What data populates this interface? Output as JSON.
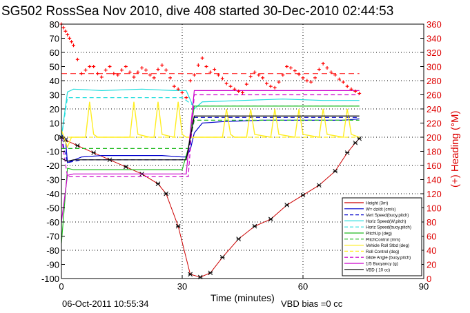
{
  "chart_data": {
    "type": "line",
    "title": "SG502 RossSea Nov 2010, dive 408 started 30-Dec-2010 02:44:53",
    "xlabel": "Time (minutes)",
    "ylabel_right": "(+) Heading (°M)",
    "xlim": [
      0,
      90
    ],
    "ylim_left": [
      -100,
      80
    ],
    "ylim_right": [
      0,
      360
    ],
    "x_ticks": [
      0,
      30,
      60,
      90
    ],
    "y_ticks_left": [
      80,
      70,
      60,
      50,
      40,
      30,
      20,
      10,
      0,
      -10,
      -20,
      -30,
      -40,
      -50,
      -60,
      -70,
      -80,
      -90,
      -100
    ],
    "y_ticks_right": [
      360,
      340,
      320,
      300,
      280,
      260,
      240,
      220,
      200,
      180,
      160,
      140,
      120,
      100,
      80,
      60,
      40,
      20,
      0
    ],
    "grid": true,
    "legend_position": "lower-right",
    "footer_left": "06-Oct-2011 10:55:34",
    "footer_right": "VBD bias =0 cc",
    "colors": {
      "heading": "#ff0000",
      "axis_right": "#dd0000",
      "height": "#cc0000",
      "w": "#0000cc",
      "horz_speed": "#22dddd",
      "pitch": "#22bb22",
      "roll": "#ffee22",
      "buoyancy": "#cc00cc",
      "vbd": "#000000"
    },
    "series": [
      {
        "name": "Height (3m)",
        "style": "red-solid-markers",
        "x": [
          0,
          1,
          4,
          8,
          12,
          16,
          20,
          24,
          26,
          29,
          32,
          34.5,
          37,
          40,
          44,
          48,
          52,
          56,
          60,
          64,
          68,
          71,
          73,
          74
        ],
        "y": [
          0,
          -2,
          -6,
          -11,
          -16,
          -21,
          -26,
          -33,
          -40,
          -63,
          -97,
          -99,
          -96,
          -85,
          -72,
          -63,
          -58,
          -48,
          -41,
          -34,
          -24,
          -11,
          -4,
          -1
        ]
      },
      {
        "name": "W= dz/dt (cm/s)",
        "style": "blue-solid",
        "x": [
          0,
          1,
          1.5,
          5,
          10,
          15,
          20,
          25,
          30,
          31,
          32,
          33,
          35,
          40,
          50,
          60,
          70,
          74
        ],
        "y": [
          2,
          -1,
          -18,
          -14,
          -13,
          -13,
          -13,
          -13,
          -14,
          -14,
          -9,
          3,
          10,
          11,
          12,
          12,
          12,
          13
        ]
      },
      {
        "name": "Vert Speed(buoy,pitch)",
        "style": "blue-dashed",
        "x": [
          0,
          1.5,
          5,
          30,
          31.5,
          33,
          74
        ],
        "y": [
          0,
          -18,
          -16,
          -16,
          -12,
          14,
          14
        ]
      },
      {
        "name": "Horiz Speed(W,pitch)",
        "style": "cyan-solid",
        "x": [
          0,
          1.5,
          3,
          10,
          20,
          28,
          31,
          33,
          35,
          45,
          55,
          65,
          74
        ],
        "y": [
          0,
          32,
          34,
          33,
          34,
          33,
          33,
          20,
          25,
          26,
          27,
          26,
          26
        ]
      },
      {
        "name": "Horiz Speed(buoy,pitch)",
        "style": "cyan-dashed",
        "x": [
          0,
          1.5,
          3,
          30,
          31.5,
          33,
          74
        ],
        "y": [
          0,
          28,
          28,
          28,
          25,
          22,
          22
        ]
      },
      {
        "name": "PitchUp (deg)",
        "style": "green-solid",
        "x": [
          0,
          1.5,
          3,
          10,
          20,
          30,
          31.5,
          33,
          74
        ],
        "y": [
          -75,
          -22,
          -23,
          -23,
          -23,
          -23,
          -8,
          22,
          22
        ]
      },
      {
        "name": "PitchControl (mm)",
        "style": "green-dashed",
        "x": [
          0,
          1.5,
          3,
          30,
          31.5,
          33,
          74
        ],
        "y": [
          -8,
          -8,
          -8,
          -8,
          -8,
          12,
          12
        ]
      },
      {
        "name": "Vehicle Roll Stbd (deg)",
        "style": "yellow-solid",
        "x": [
          0,
          1.5,
          2.5,
          3.5,
          5,
          6,
          7,
          8,
          9,
          10,
          15,
          17,
          18,
          19,
          22,
          23,
          24,
          25,
          28,
          29,
          30,
          31,
          33,
          40,
          41,
          42,
          43,
          46,
          47,
          48,
          52,
          53,
          54,
          58,
          59,
          60,
          64,
          65,
          66,
          70,
          71,
          72,
          74
        ],
        "y": [
          5,
          -7,
          0,
          0,
          0,
          0,
          25,
          2,
          0,
          0,
          0,
          0,
          25,
          2,
          0,
          0,
          25,
          2,
          0,
          25,
          2,
          0,
          0,
          0,
          20,
          2,
          0,
          0,
          20,
          2,
          0,
          20,
          2,
          0,
          20,
          2,
          0,
          20,
          2,
          0,
          20,
          2,
          0
        ]
      },
      {
        "name": "Roll Control (deg)",
        "style": "yellow-dashed",
        "x": [
          0,
          74
        ],
        "y": [
          0,
          0
        ]
      },
      {
        "name": "Glide Angle (buoy,pitch)",
        "style": "magenta-dashed",
        "x": [
          0,
          1.5,
          3,
          30,
          31.5,
          33,
          74
        ],
        "y": [
          0,
          -28,
          -28,
          -28,
          -28,
          30,
          30
        ]
      },
      {
        "name": "1/5 Buoyancy (g)",
        "style": "magenta-solid",
        "x": [
          0,
          1.5,
          3,
          31,
          33,
          74
        ],
        "y": [
          -60,
          -27,
          -26,
          -26,
          33,
          33
        ]
      },
      {
        "name": "VBD ( 10 cc)",
        "style": "black-solid",
        "x": [
          0,
          1.5,
          3,
          31,
          33,
          74
        ],
        "y": [
          -15,
          -17,
          -16,
          -16,
          15,
          15
        ]
      }
    ],
    "heading": {
      "axis": "right",
      "style": "red-cross-markers",
      "x": [
        0,
        0.5,
        1,
        1.5,
        2,
        2.5,
        3,
        4,
        5,
        6,
        7,
        8,
        9,
        10,
        11,
        12,
        13,
        14,
        15,
        16,
        17,
        18,
        19,
        20,
        21,
        22,
        23,
        24,
        25,
        26,
        27,
        28,
        29,
        30,
        31,
        32,
        33,
        34,
        35,
        36,
        37,
        38,
        39,
        40,
        41,
        42,
        43,
        44,
        45,
        46,
        47,
        48,
        49,
        50,
        51,
        52,
        53,
        54,
        55,
        56,
        57,
        58,
        59,
        60,
        61,
        62,
        63,
        64,
        65,
        66,
        67,
        68,
        69,
        70,
        71,
        72,
        73,
        74
      ],
      "y": [
        360,
        355,
        350,
        345,
        340,
        335,
        330,
        310,
        290,
        295,
        300,
        300,
        290,
        285,
        295,
        300,
        290,
        288,
        295,
        300,
        292,
        285,
        292,
        298,
        295,
        288,
        284,
        296,
        302,
        295,
        284,
        272,
        268,
        263,
        256,
        280,
        288,
        302,
        312,
        300,
        292,
        296,
        288,
        283,
        276,
        272,
        268,
        265,
        263,
        275,
        286,
        292,
        288,
        284,
        276,
        272,
        270,
        278,
        288,
        300,
        298,
        294,
        289,
        284,
        280,
        278,
        284,
        296,
        304,
        298,
        292,
        288,
        282,
        278,
        272,
        268,
        265,
        262
      ]
    },
    "heading_dashed": {
      "axis": "right",
      "x": [
        0,
        74
      ],
      "y": [
        290,
        290
      ]
    }
  }
}
